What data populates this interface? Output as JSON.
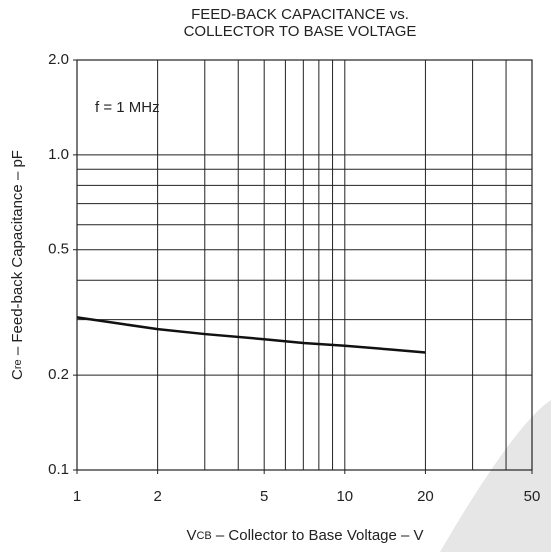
{
  "chart_data": {
    "type": "line",
    "title": [
      "FEED-BACK CAPACITANCE vs.",
      "COLLECTOR TO BASE VOLTAGE"
    ],
    "x_label": {
      "symbol": "V",
      "subscript": "CB",
      "text": " – Collector to Base Voltage  – V"
    },
    "y_label": {
      "symbol": "C",
      "subscript": "re",
      "text": " – Feed-back Capacitance – pF"
    },
    "annotation": "f = 1 MHz",
    "log_x": true,
    "log_y": true,
    "xlim": [
      1,
      50
    ],
    "ylim": [
      0.1,
      2.0
    ],
    "xticks": [
      1,
      2,
      5,
      10,
      20,
      50
    ],
    "yticks": [
      0.1,
      0.2,
      0.5,
      {
        "value": 1.0,
        "label": "1.0"
      },
      {
        "value": 2.0,
        "label": "2.0"
      }
    ],
    "x_grid": [
      2,
      3,
      4,
      5,
      6,
      7,
      8,
      9,
      10,
      20,
      30,
      40
    ],
    "y_grid": [
      0.2,
      0.3,
      0.4,
      0.5,
      0.6,
      0.7,
      0.8,
      0.9,
      1.0
    ],
    "series": [
      {
        "color": "#111111",
        "x": [
          1,
          1.5,
          2,
          3,
          5,
          7,
          10,
          15,
          20
        ],
        "values": [
          0.305,
          0.29,
          0.28,
          0.27,
          0.26,
          0.253,
          0.248,
          0.241,
          0.236
        ]
      }
    ]
  }
}
